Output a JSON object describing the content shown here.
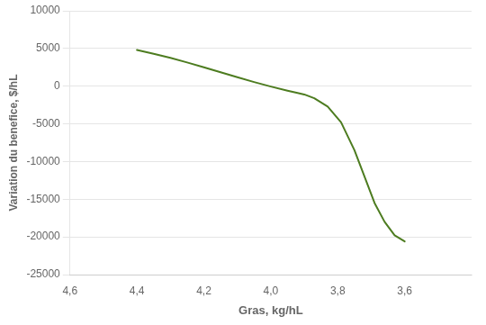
{
  "chart_data": {
    "type": "line",
    "x": [
      4.4,
      4.35,
      4.3,
      4.25,
      4.2,
      4.15,
      4.1,
      4.05,
      4.0,
      3.95,
      3.92,
      3.9,
      3.87,
      3.83,
      3.79,
      3.75,
      3.72,
      3.69,
      3.66,
      3.63,
      3.6
    ],
    "values": [
      4800,
      4300,
      3750,
      3150,
      2500,
      1850,
      1200,
      550,
      -50,
      -600,
      -900,
      -1100,
      -1600,
      -2700,
      -4800,
      -8500,
      -12000,
      -15500,
      -18000,
      -19800,
      -20600
    ],
    "color": "#4d7c20",
    "xlabel": "Gras, kg/hL",
    "ylabel": "Variation du benefice, $/hL",
    "xlim": [
      4.6,
      3.4
    ],
    "ylim": [
      -25000,
      10000
    ],
    "xticks": [
      {
        "value": 4.6,
        "label": "4,6"
      },
      {
        "value": 4.4,
        "label": "4,4"
      },
      {
        "value": 4.2,
        "label": "4,2"
      },
      {
        "value": 4.0,
        "label": "4,0"
      },
      {
        "value": 3.8,
        "label": "3,8"
      },
      {
        "value": 3.6,
        "label": "3,6"
      }
    ],
    "yticks": [
      -25000,
      -20000,
      -15000,
      -10000,
      -5000,
      0,
      5000,
      10000
    ],
    "grid": "y"
  }
}
